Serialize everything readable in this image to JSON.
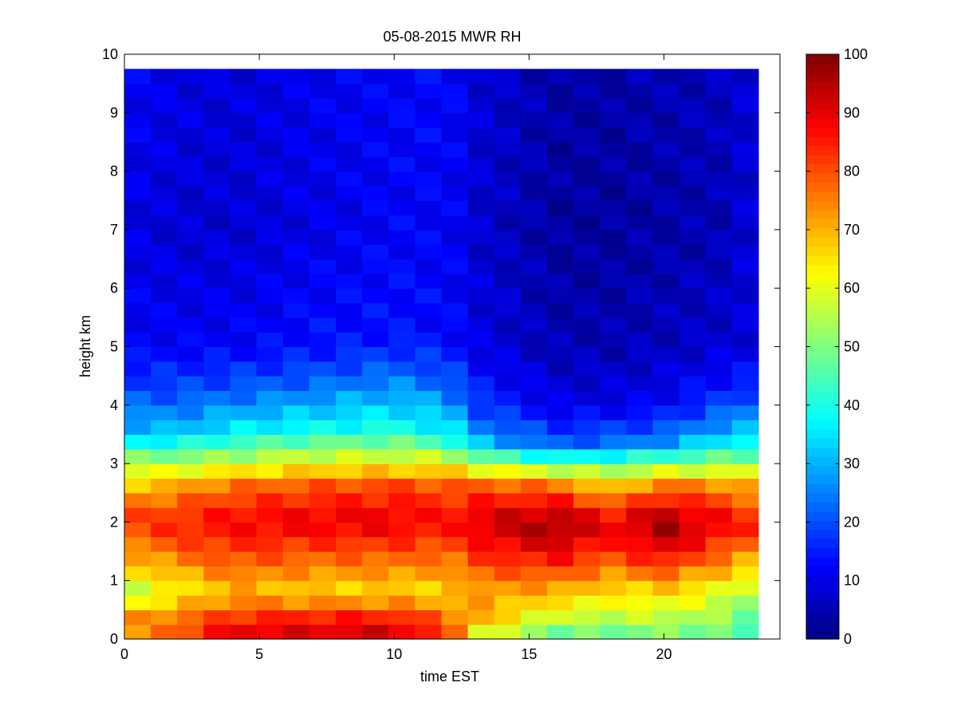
{
  "chart_data": {
    "type": "heatmap",
    "title": "05-08-2015 MWR RH",
    "xlabel": "time EST",
    "ylabel": "height km",
    "xlim": [
      0,
      24.3
    ],
    "ylim": [
      0,
      10
    ],
    "xticks": [
      "0",
      "5",
      "10",
      "15",
      "20"
    ],
    "yticks": [
      "0",
      "1",
      "2",
      "3",
      "4",
      "5",
      "6",
      "7",
      "8",
      "9",
      "10"
    ],
    "colorbar": {
      "colormap": "jet",
      "range": [
        0,
        100
      ],
      "ticks": [
        "0",
        "10",
        "20",
        "30",
        "40",
        "50",
        "60",
        "70",
        "80",
        "90",
        "100"
      ]
    },
    "grid": false,
    "data_extent": {
      "time_start": 0,
      "time_end": 23.5,
      "height_start": 0,
      "height_end": 9.75
    },
    "time_bins": 24,
    "height_bins": 39,
    "profile_keyframes": [
      {
        "hour": 0,
        "rh": [
          [
            0,
            65
          ],
          [
            0.3,
            75
          ],
          [
            0.8,
            55
          ],
          [
            1.5,
            72
          ],
          [
            2.0,
            82
          ],
          [
            2.5,
            72
          ],
          [
            3.0,
            55
          ],
          [
            3.5,
            32
          ],
          [
            4.2,
            20
          ],
          [
            5.0,
            12
          ],
          [
            7.0,
            10
          ],
          [
            9.75,
            12
          ]
        ]
      },
      {
        "hour": 2,
        "rh": [
          [
            0,
            80
          ],
          [
            0.3,
            78
          ],
          [
            0.8,
            62
          ],
          [
            1.5,
            78
          ],
          [
            2.0,
            85
          ],
          [
            2.5,
            75
          ],
          [
            3.0,
            56
          ],
          [
            3.5,
            32
          ],
          [
            4.2,
            20
          ],
          [
            5.0,
            12
          ],
          [
            7.0,
            8
          ],
          [
            9.75,
            10
          ]
        ]
      },
      {
        "hour": 4,
        "rh": [
          [
            0,
            92
          ],
          [
            0.3,
            85
          ],
          [
            0.8,
            70
          ],
          [
            1.5,
            82
          ],
          [
            2.0,
            88
          ],
          [
            2.6,
            78
          ],
          [
            3.0,
            58
          ],
          [
            3.5,
            38
          ],
          [
            4.2,
            22
          ],
          [
            5.0,
            12
          ],
          [
            7.0,
            8
          ],
          [
            9.75,
            9
          ]
        ]
      },
      {
        "hour": 7,
        "rh": [
          [
            0,
            92
          ],
          [
            0.3,
            88
          ],
          [
            0.8,
            66
          ],
          [
            1.5,
            80
          ],
          [
            2.0,
            90
          ],
          [
            2.6,
            80
          ],
          [
            3.0,
            62
          ],
          [
            3.6,
            38
          ],
          [
            4.4,
            22
          ],
          [
            5.0,
            14
          ],
          [
            7.0,
            10
          ],
          [
            9.75,
            11
          ]
        ]
      },
      {
        "hour": 10,
        "rh": [
          [
            0,
            94
          ],
          [
            0.3,
            88
          ],
          [
            0.8,
            66
          ],
          [
            1.5,
            80
          ],
          [
            2.0,
            90
          ],
          [
            2.6,
            82
          ],
          [
            3.0,
            62
          ],
          [
            3.6,
            40
          ],
          [
            4.6,
            22
          ],
          [
            5.2,
            14
          ],
          [
            7.0,
            12
          ],
          [
            9.75,
            12
          ]
        ]
      },
      {
        "hour": 12,
        "rh": [
          [
            0,
            82
          ],
          [
            0.3,
            78
          ],
          [
            0.8,
            66
          ],
          [
            1.5,
            78
          ],
          [
            2.0,
            86
          ],
          [
            2.6,
            80
          ],
          [
            3.0,
            62
          ],
          [
            3.5,
            38
          ],
          [
            4.5,
            20
          ],
          [
            5.2,
            13
          ],
          [
            7.0,
            12
          ],
          [
            9.75,
            13
          ]
        ]
      },
      {
        "hour": 13,
        "rh": [
          [
            0,
            58
          ],
          [
            0.4,
            72
          ],
          [
            0.8,
            72
          ],
          [
            1.5,
            84
          ],
          [
            2.0,
            92
          ],
          [
            2.6,
            80
          ],
          [
            3.0,
            55
          ],
          [
            3.4,
            30
          ],
          [
            4.0,
            18
          ],
          [
            5.0,
            10
          ],
          [
            7.0,
            8
          ],
          [
            9.75,
            9
          ]
        ]
      },
      {
        "hour": 16,
        "rh": [
          [
            0,
            45
          ],
          [
            0.3,
            55
          ],
          [
            0.8,
            70
          ],
          [
            1.5,
            90
          ],
          [
            2.0,
            98
          ],
          [
            2.6,
            78
          ],
          [
            3.0,
            48
          ],
          [
            3.3,
            22
          ],
          [
            4.0,
            10
          ],
          [
            5.0,
            5
          ],
          [
            7.0,
            3
          ],
          [
            9.75,
            4
          ]
        ]
      },
      {
        "hour": 18,
        "rh": [
          [
            0,
            45
          ],
          [
            0.3,
            55
          ],
          [
            0.8,
            65
          ],
          [
            1.5,
            82
          ],
          [
            2.0,
            90
          ],
          [
            2.5,
            72
          ],
          [
            3.0,
            48
          ],
          [
            3.3,
            24
          ],
          [
            4.0,
            10
          ],
          [
            5.0,
            5
          ],
          [
            7.0,
            3
          ],
          [
            9.75,
            4
          ]
        ]
      },
      {
        "hour": 20,
        "rh": [
          [
            0,
            48
          ],
          [
            0.3,
            55
          ],
          [
            0.8,
            66
          ],
          [
            1.5,
            90
          ],
          [
            2.0,
            98
          ],
          [
            2.6,
            78
          ],
          [
            3.0,
            50
          ],
          [
            3.4,
            25
          ],
          [
            4.0,
            12
          ],
          [
            5.0,
            6
          ],
          [
            7.0,
            4
          ],
          [
            9.75,
            5
          ]
        ]
      },
      {
        "hour": 22,
        "rh": [
          [
            0,
            48
          ],
          [
            0.3,
            52
          ],
          [
            0.8,
            60
          ],
          [
            1.5,
            80
          ],
          [
            2.0,
            90
          ],
          [
            2.6,
            75
          ],
          [
            3.0,
            52
          ],
          [
            3.5,
            30
          ],
          [
            4.2,
            15
          ],
          [
            5.0,
            8
          ],
          [
            7.0,
            5
          ],
          [
            9.75,
            6
          ]
        ]
      },
      {
        "hour": 23,
        "rh": [
          [
            0,
            40
          ],
          [
            0.3,
            48
          ],
          [
            0.8,
            55
          ],
          [
            1.5,
            75
          ],
          [
            2.0,
            86
          ],
          [
            2.6,
            72
          ],
          [
            3.0,
            52
          ],
          [
            3.6,
            30
          ],
          [
            4.4,
            15
          ],
          [
            5.0,
            9
          ],
          [
            7.0,
            8
          ],
          [
            9.75,
            8
          ]
        ]
      }
    ]
  }
}
